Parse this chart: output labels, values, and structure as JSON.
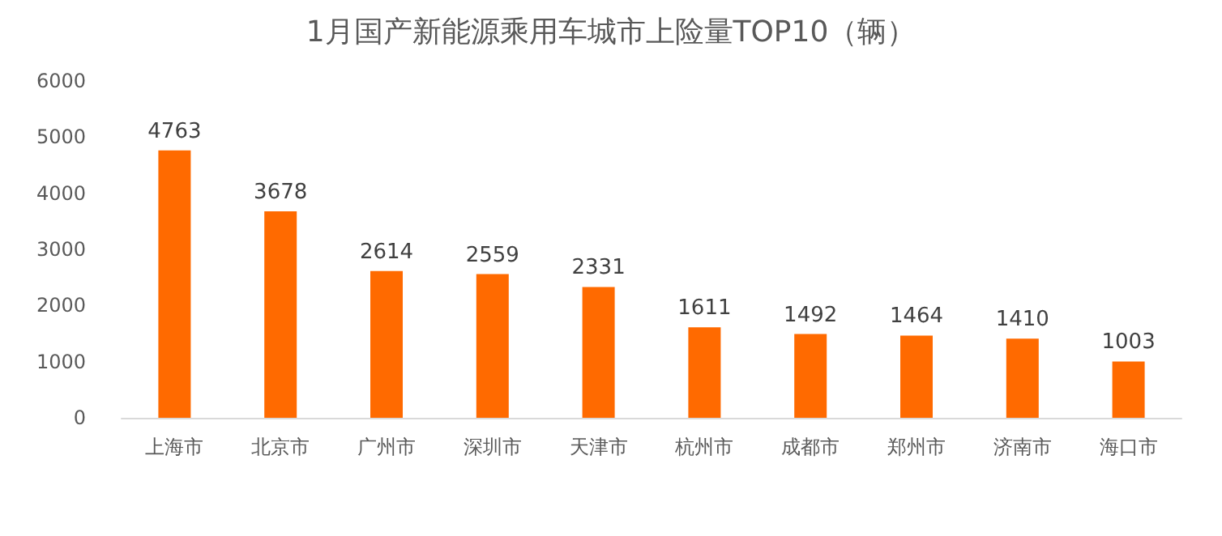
{
  "chart_data": {
    "type": "bar",
    "title": "1月国产新能源乘用车城市上险量TOP10（辆）",
    "categories": [
      "上海市",
      "北京市",
      "广州市",
      "深圳市",
      "天津市",
      "杭州市",
      "成都市",
      "郑州市",
      "济南市",
      "海口市"
    ],
    "values": [
      4763,
      3678,
      2614,
      2559,
      2331,
      1611,
      1492,
      1464,
      1410,
      1003
    ],
    "color": "#ff6a00",
    "ylim": [
      0,
      6000
    ],
    "yticks": [
      0,
      1000,
      2000,
      3000,
      4000,
      5000,
      6000
    ],
    "grid": false,
    "data_labels": true
  }
}
